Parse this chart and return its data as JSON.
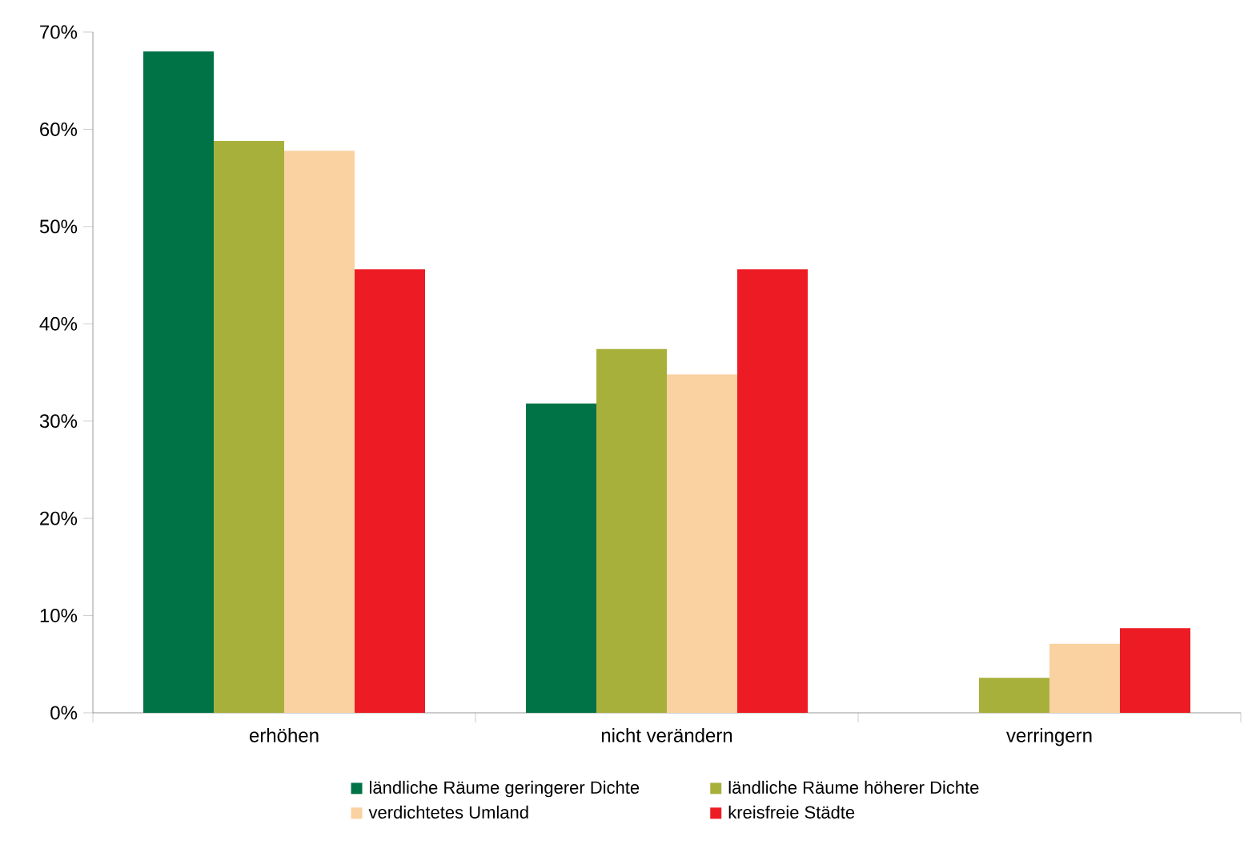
{
  "chart_data": {
    "type": "bar",
    "categories": [
      "erhöhen",
      "nicht verändern",
      "verringern"
    ],
    "series": [
      {
        "name": "ländliche Räume geringerer Dichte",
        "color": "#007346",
        "values": [
          68,
          31.8,
          0
        ]
      },
      {
        "name": "ländliche Räume höherer Dichte",
        "color": "#a8b03c",
        "values": [
          58.8,
          37.4,
          3.6
        ]
      },
      {
        "name": "verdichtetes Umland",
        "color": "#fad1a0",
        "values": [
          57.8,
          34.8,
          7.1
        ]
      },
      {
        "name": "kreisfreie Städte",
        "color": "#ed1c24",
        "values": [
          45.6,
          45.6,
          8.7
        ]
      }
    ],
    "ylim": [
      0,
      70
    ],
    "yticks": [
      {
        "value": 0,
        "label": "0%"
      },
      {
        "value": 10,
        "label": "10%"
      },
      {
        "value": 20,
        "label": "20%"
      },
      {
        "value": 30,
        "label": "30%"
      },
      {
        "value": 40,
        "label": "40%"
      },
      {
        "value": 50,
        "label": "50%"
      },
      {
        "value": 60,
        "label": "60%"
      },
      {
        "value": 70,
        "label": "70%"
      }
    ],
    "grid": false,
    "legend": "bottom"
  }
}
